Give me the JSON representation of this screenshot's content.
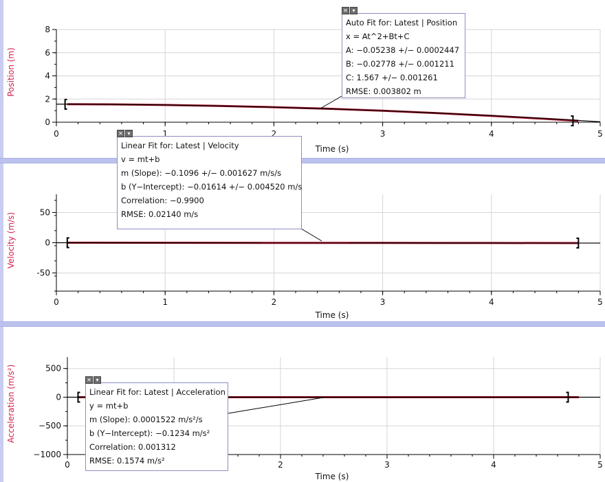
{
  "graphs": [
    {
      "id": "position",
      "ylabel": "Position (m)",
      "xlabel": "Time (s)",
      "xlim": [
        0,
        5
      ],
      "ylim": [
        0,
        8
      ],
      "yticks": [
        0,
        2,
        4,
        6,
        8
      ],
      "ytick_labels": [
        "0",
        "2",
        "4",
        "6",
        "8"
      ],
      "xticks": [
        0,
        1,
        2,
        3,
        4,
        5
      ],
      "xtick_labels": [
        "0",
        "1",
        "2",
        "3",
        "4",
        "5"
      ]
    },
    {
      "id": "velocity",
      "ylabel": "Velocity (m/s)",
      "xlabel": "Time (s)",
      "xlim": [
        0,
        5
      ],
      "ylim": [
        -80,
        80
      ],
      "yticks": [
        -50,
        0,
        50
      ],
      "ytick_labels": [
        "-50",
        "0",
        "50"
      ],
      "xticks": [
        0,
        1,
        2,
        3,
        4,
        5
      ],
      "xtick_labels": [
        "0",
        "1",
        "2",
        "3",
        "4",
        "5"
      ]
    },
    {
      "id": "acceleration",
      "ylabel": "Acceleration (m/s²)",
      "xlabel": "Time (s)",
      "xlim": [
        0,
        5
      ],
      "ylim": [
        -1000,
        700
      ],
      "yticks": [
        -1000,
        -500,
        0,
        500
      ],
      "ytick_labels": [
        "−1000",
        "−500",
        "0",
        "500"
      ],
      "xticks": [
        0,
        1,
        2,
        3,
        4,
        5
      ],
      "xtick_labels": [
        "0",
        "1",
        "2",
        "3",
        "4",
        "5"
      ]
    }
  ],
  "fit_boxes": {
    "position": [
      "Auto Fit for: Latest | Position",
      "x = At^2+Bt+C",
      "A: −0.05238 +/− 0.0002447",
      "B: −0.02778 +/− 0.001211",
      "C: 1.567 +/− 0.001261",
      "RMSE: 0.003802 m"
    ],
    "velocity": [
      "Linear Fit for: Latest | Velocity",
      "v = mt+b",
      "m (Slope): −0.1096 +/− 0.001627 m/s/s",
      "b (Y−Intercept): −0.01614 +/− 0.004520 m/s",
      "Correlation: −0.9900",
      "RMSE: 0.02140 m/s"
    ],
    "acceleration": [
      "Linear Fit for: Latest | Acceleration",
      "y = mt+b",
      "m (Slope): 0.0001522 m/s²/s",
      "b (Y−Intercept): −0.1234 m/s²",
      "Correlation: 0.001312",
      "RMSE: 0.1574 m/s²"
    ]
  },
  "fit_box_controls": {
    "close": "✕",
    "minimize": "▾"
  },
  "chart_data": [
    {
      "type": "line",
      "xlabel": "Time (s)",
      "ylabel": "Position (m)",
      "xlim": [
        0,
        5
      ],
      "ylim": [
        0,
        8
      ],
      "series": [
        {
          "name": "Latest | Position",
          "color": "#a0122b",
          "x": [
            0.1,
            0.5,
            1.0,
            1.5,
            2.0,
            2.5,
            3.0,
            3.5,
            4.0,
            4.5,
            4.8
          ],
          "y": [
            1.55,
            1.54,
            1.49,
            1.41,
            1.3,
            1.16,
            0.99,
            0.79,
            0.55,
            0.29,
            0.12
          ]
        },
        {
          "name": "Auto Fit",
          "color": "#000000",
          "x": [
            0.0,
            0.5,
            1.0,
            1.5,
            2.0,
            2.5,
            3.0,
            3.5,
            4.0,
            4.5,
            5.0
          ],
          "y": [
            1.567,
            1.54,
            1.486,
            1.404,
            1.294,
            1.155,
            0.9885,
            0.794,
            0.5716,
            0.3212,
            0.0431
          ]
        }
      ],
      "fit_range": [
        0.08,
        4.75
      ]
    },
    {
      "type": "line",
      "xlabel": "Time (s)",
      "ylabel": "Velocity (m/s)",
      "xlim": [
        0,
        5
      ],
      "ylim": [
        -80,
        80
      ],
      "series": [
        {
          "name": "Latest | Velocity",
          "color": "#a0122b",
          "x": [
            0.1,
            1.0,
            2.0,
            3.0,
            4.0,
            4.8
          ],
          "y": [
            -0.03,
            -0.12,
            -0.23,
            -0.34,
            -0.45,
            -0.54
          ]
        },
        {
          "name": "Linear Fit",
          "color": "#000000",
          "x": [
            0.0,
            5.0
          ],
          "y": [
            -0.01614,
            -0.564
          ]
        }
      ],
      "fit_range": [
        0.1,
        4.8
      ]
    },
    {
      "type": "line",
      "xlabel": "Time (s)",
      "ylabel": "Acceleration (m/s²)",
      "xlim": [
        0,
        5
      ],
      "ylim": [
        -1000,
        700
      ],
      "series": [
        {
          "name": "Latest | Acceleration",
          "color": "#a0122b",
          "x": [
            0.1,
            1.0,
            2.0,
            3.0,
            4.0,
            4.8
          ],
          "y": [
            -0.12,
            -0.12,
            -0.12,
            -0.12,
            -0.12,
            -0.12
          ]
        },
        {
          "name": "Linear Fit",
          "color": "#000000",
          "x": [
            0.0,
            5.0
          ],
          "y": [
            -0.1234,
            -0.1226
          ]
        }
      ],
      "fit_range": [
        0.1,
        4.7
      ]
    }
  ]
}
